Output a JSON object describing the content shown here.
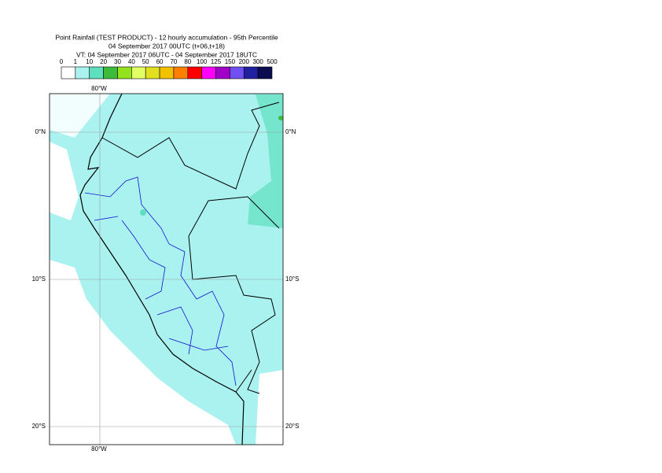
{
  "title": {
    "lines": [
      "Point Rainfall (TEST PRODUCT) - 12 hourly accumulation - 95th Percentile",
      "04 September 2017 00UTC (t+06,t+18)",
      "VT: 04 September 2017 06UTC - 04 September 2017 18UTC"
    ]
  },
  "legend": {
    "labels": [
      "0",
      "1",
      "10",
      "20",
      "30",
      "40",
      "50",
      "60",
      "70",
      "80",
      "100",
      "125",
      "150",
      "200",
      "300",
      "500"
    ],
    "colors": [
      "#ffffff",
      "#aaf2f0",
      "#5fe0bd",
      "#3dbb3d",
      "#92e21c",
      "#e2ff66",
      "#e0e020",
      "#f2c200",
      "#ff8000",
      "#ff0000",
      "#ff00ff",
      "#a000c8",
      "#7050f0",
      "#2020a0",
      "#0c0c50"
    ]
  },
  "map": {
    "lon_label": "80°W",
    "lat_labels": [
      "0°N",
      "10°S",
      "20°S"
    ]
  }
}
